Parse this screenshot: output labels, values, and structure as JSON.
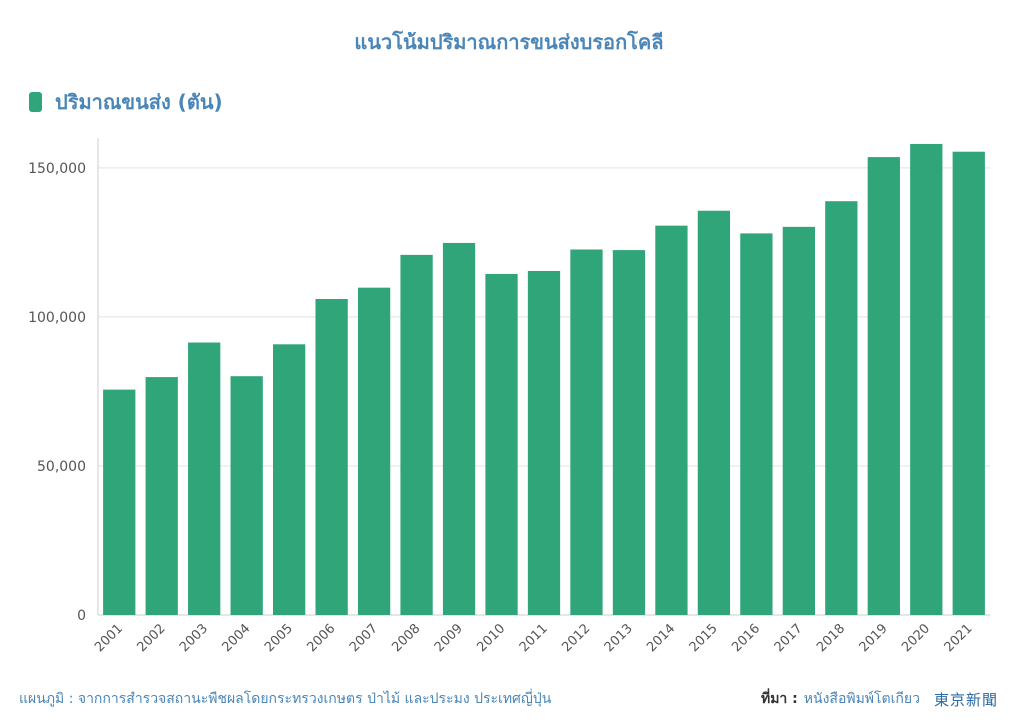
{
  "title": "แนวโน้มปริมาณการขนส่งบรอกโคลี",
  "legend": {
    "label": "ปริมาณขนส่ง (ตัน)",
    "color": "#30a57a"
  },
  "colors": {
    "bar": "#30a57a",
    "accent": "#4a86b8",
    "grid": "#e3e3e3"
  },
  "footer": {
    "background": "แผนภูมิ : จากการสำรวจสถานะพืชผลโดยกระทรวงเกษตร ป่าไม้ และประมง ประเทศญี่ปุ่น",
    "source_label": "ที่มา :",
    "source_name": "หนังสือพิมพ์โตเกียว",
    "brand": "東京新聞"
  },
  "chart_data": {
    "type": "bar",
    "title": "แนวโน้มปริมาณการขนส่งบรอกโคลี",
    "xlabel": "",
    "ylabel": "",
    "categories": [
      "2001",
      "2002",
      "2003",
      "2004",
      "2005",
      "2006",
      "2007",
      "2008",
      "2009",
      "2010",
      "2011",
      "2012",
      "2013",
      "2014",
      "2015",
      "2016",
      "2017",
      "2018",
      "2019",
      "2020",
      "2021"
    ],
    "series": [
      {
        "name": "ปริมาณขนส่ง (ตัน)",
        "values": [
          75600,
          79800,
          91400,
          80100,
          90800,
          106000,
          109800,
          120800,
          124800,
          114400,
          115400,
          122600,
          122400,
          130600,
          135600,
          128000,
          130200,
          138800,
          153600,
          158000,
          155400
        ]
      }
    ],
    "ylim": [
      0,
      160000
    ],
    "yticks": [
      0,
      50000,
      100000,
      150000
    ],
    "ytick_labels": [
      "0",
      "50,000",
      "100,000",
      "150,000"
    ],
    "grid": true,
    "legend_position": "top-left"
  }
}
